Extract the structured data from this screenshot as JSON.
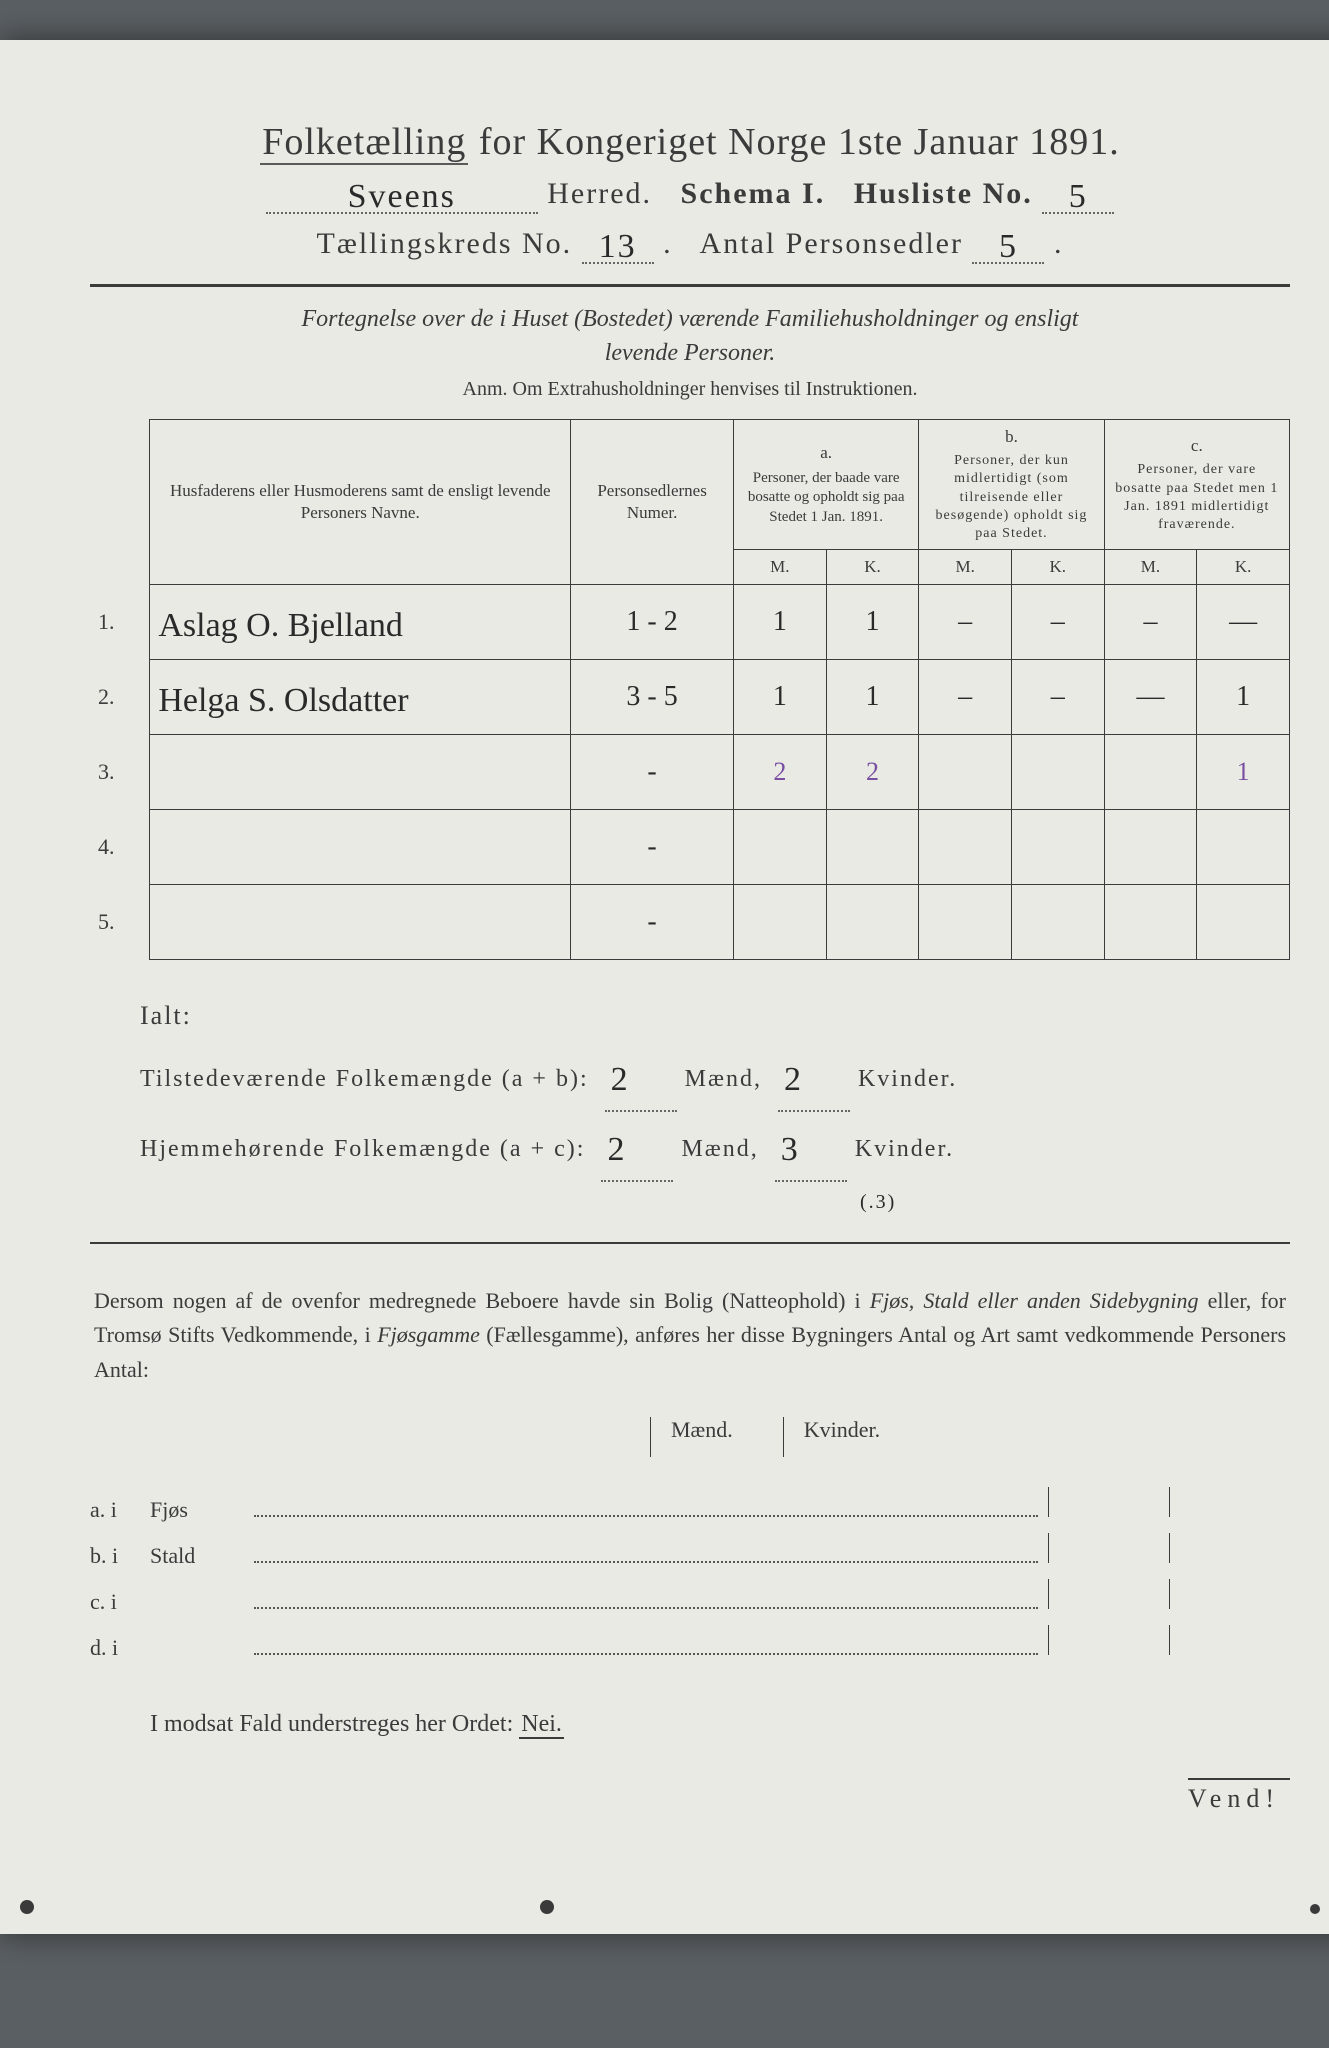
{
  "title_left": "Folketælling",
  "title_mid": " for Kongeriget Norge 1ste Januar ",
  "title_year": "1891.",
  "herred_value": "Sveens",
  "herred_label": " Herred.",
  "schema_label": "Schema I.",
  "husliste_label": "Husliste No.",
  "husliste_value": "5",
  "kreds_label": "Tællingskreds No.",
  "kreds_value": "13",
  "personsedler_label": "Antal Personsedler",
  "personsedler_value": "5",
  "intro_line1": "Fortegnelse over de i Huset (Bostedet) værende Familiehusholdninger og ensligt",
  "intro_line2": "levende Personer.",
  "anm": "Anm. Om Extrahusholdninger henvises til Instruktionen.",
  "colA_title": "Husfaderens eller Husmoderens samt de ensligt levende Personers Navne.",
  "colB_title": "Personsedlernes Numer.",
  "col_a_letter": "a.",
  "col_a_text": "Personer, der baade vare bosatte og opholdt sig paa Stedet 1 Jan. 1891.",
  "col_b_letter": "b.",
  "col_b_text": "Personer, der kun midlertidigt (som tilreisende eller besøgende) opholdt sig paa Stedet.",
  "col_c_letter": "c.",
  "col_c_text": "Personer, der vare bosatte paa Stedet men 1 Jan. 1891 midlertidigt fraværende.",
  "mk_M": "M.",
  "mk_K": "K.",
  "rows": [
    {
      "n": "1.",
      "name": "Aslag O. Bjelland",
      "num": "1 - 2",
      "aM": "1",
      "aK": "1",
      "bM": "–",
      "bK": "–",
      "cM": "–",
      "cK": "—"
    },
    {
      "n": "2.",
      "name": "Helga S. Olsdatter",
      "num": "3 - 5",
      "aM": "1",
      "aK": "1",
      "bM": "–",
      "bK": "–",
      "cM": "—",
      "cK": "1"
    },
    {
      "n": "3.",
      "name": "",
      "num": "-",
      "aM": "2",
      "aK": "2",
      "bM": "",
      "bK": "",
      "cM": "",
      "cK": "1"
    },
    {
      "n": "4.",
      "name": "",
      "num": "-",
      "aM": "",
      "aK": "",
      "bM": "",
      "bK": "",
      "cM": "",
      "cK": ""
    },
    {
      "n": "5.",
      "name": "",
      "num": "-",
      "aM": "",
      "aK": "",
      "bM": "",
      "bK": "",
      "cM": "",
      "cK": ""
    }
  ],
  "ialt": "Ialt:",
  "sum1_label": "Tilstedeværende Folkemængde (a + b):",
  "sum2_label": "Hjemmehørende Folkemængde (a + c):",
  "maend": "Mænd,",
  "kvinder": "Kvinder.",
  "sum1_m": "2",
  "sum1_k": "2",
  "sum2_m": "2",
  "sum2_k": "3",
  "aside_note": "(.3)",
  "para": "Dersom nogen af de ovenfor medregnede Beboere havde sin Bolig (Natteophold) i <em>Fjøs, Stald eller anden Sidebygning</em> eller, for Tromsø Stifts Vedkommende, i <em>Fjøsgamme</em> (Fællesgamme), anføres her disse Bygningers Antal og Art samt vedkommende Personers Antal:",
  "mk_head_m": "Mænd.",
  "mk_head_k": "Kvinder.",
  "bygn": [
    {
      "tag": "a.  i",
      "lbl": "Fjøs"
    },
    {
      "tag": "b.  i",
      "lbl": "Stald"
    },
    {
      "tag": "c.  i",
      "lbl": ""
    },
    {
      "tag": "d.  i",
      "lbl": ""
    }
  ],
  "nei_text": "I modsat Fald understreges her Ordet: ",
  "nei_word": "Nei.",
  "vend": "Vend!"
}
